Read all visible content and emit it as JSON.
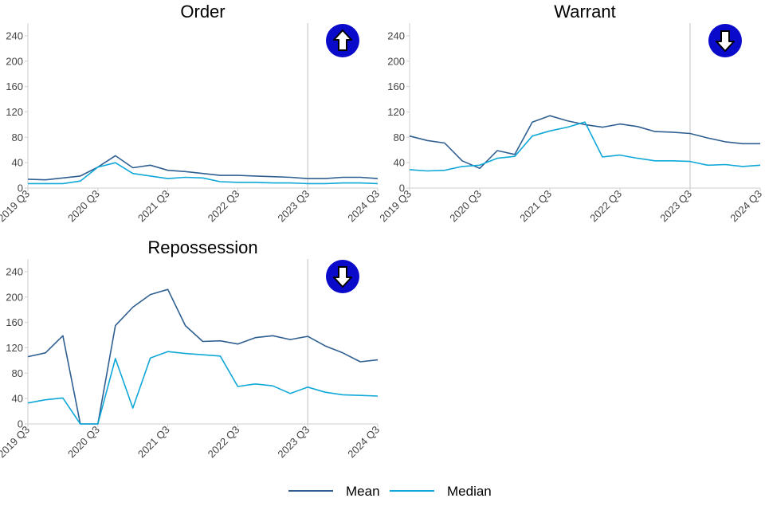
{
  "chart_data": [
    {
      "type": "line",
      "title": "Order",
      "trend_icon": "arrow-up-icon",
      "categories": [
        "2019 Q3",
        "2019 Q4",
        "2020 Q1",
        "2020 Q2",
        "2020 Q3",
        "2020 Q4",
        "2021 Q1",
        "2021 Q2",
        "2021 Q3",
        "2021 Q4",
        "2022 Q1",
        "2022 Q2",
        "2022 Q3",
        "2022 Q4",
        "2023 Q1",
        "2023 Q2",
        "2023 Q3",
        "2023 Q4",
        "2024 Q1",
        "2024 Q2",
        "2024 Q3"
      ],
      "x_tick_labels": [
        "2019 Q3",
        "2020 Q3",
        "2021 Q3",
        "2022 Q3",
        "2023 Q3",
        "2024 Q3"
      ],
      "reference_line_at": "2023 Q3",
      "ylim": [
        0,
        260
      ],
      "yticks": [
        0,
        40,
        80,
        120,
        160,
        200,
        240
      ],
      "series": [
        {
          "name": "Mean",
          "values": [
            14,
            13,
            16,
            19,
            33,
            51,
            32,
            36,
            28,
            26,
            23,
            20,
            20,
            19,
            18,
            17,
            15,
            15,
            17,
            17,
            15
          ]
        },
        {
          "name": "Median",
          "values": [
            7,
            7,
            7,
            11,
            33,
            40,
            23,
            19,
            15,
            17,
            16,
            10,
            9,
            9,
            8,
            8,
            7,
            7,
            8,
            8,
            7
          ]
        }
      ]
    },
    {
      "type": "line",
      "title": "Warrant",
      "trend_icon": "arrow-down-icon",
      "categories": [
        "2019 Q3",
        "2019 Q4",
        "2020 Q1",
        "2020 Q2",
        "2020 Q3",
        "2020 Q4",
        "2021 Q1",
        "2021 Q2",
        "2021 Q3",
        "2021 Q4",
        "2022 Q1",
        "2022 Q2",
        "2022 Q3",
        "2022 Q4",
        "2023 Q1",
        "2023 Q2",
        "2023 Q3",
        "2023 Q4",
        "2024 Q1",
        "2024 Q2",
        "2024 Q3"
      ],
      "x_tick_labels": [
        "2019 Q3",
        "2020 Q3",
        "2021 Q3",
        "2022 Q3",
        "2023 Q3",
        "2024 Q3"
      ],
      "reference_line_at": "2023 Q3",
      "ylim": [
        0,
        260
      ],
      "yticks": [
        0,
        40,
        80,
        120,
        160,
        200,
        240
      ],
      "series": [
        {
          "name": "Mean",
          "values": [
            82,
            75,
            71,
            43,
            31,
            59,
            53,
            104,
            114,
            106,
            100,
            96,
            101,
            97,
            89,
            88,
            86,
            79,
            73,
            70,
            70
          ]
        },
        {
          "name": "Median",
          "values": [
            29,
            27,
            28,
            34,
            36,
            47,
            50,
            82,
            90,
            96,
            104,
            49,
            52,
            47,
            43,
            43,
            42,
            36,
            37,
            34,
            36
          ]
        }
      ]
    },
    {
      "type": "line",
      "title": "Repossession",
      "trend_icon": "arrow-down-icon",
      "categories": [
        "2019 Q3",
        "2019 Q4",
        "2020 Q1",
        "2020 Q2",
        "2020 Q3",
        "2020 Q4",
        "2021 Q1",
        "2021 Q2",
        "2021 Q3",
        "2021 Q4",
        "2022 Q1",
        "2022 Q2",
        "2022 Q3",
        "2022 Q4",
        "2023 Q1",
        "2023 Q2",
        "2023 Q3",
        "2023 Q4",
        "2024 Q1",
        "2024 Q2",
        "2024 Q3"
      ],
      "x_tick_labels": [
        "2019 Q3",
        "2020 Q3",
        "2021 Q3",
        "2022 Q3",
        "2023 Q3",
        "2024 Q3"
      ],
      "reference_line_at": "2023 Q3",
      "ylim": [
        0,
        260
      ],
      "yticks": [
        0,
        40,
        80,
        120,
        160,
        200,
        240
      ],
      "series": [
        {
          "name": "Mean",
          "values": [
            106,
            112,
            139,
            0,
            0,
            155,
            184,
            204,
            212,
            155,
            130,
            131,
            126,
            136,
            139,
            133,
            138,
            123,
            112,
            98,
            101
          ]
        },
        {
          "name": "Median",
          "values": [
            33,
            38,
            41,
            0,
            0,
            103,
            25,
            104,
            114,
            111,
            109,
            107,
            59,
            63,
            60,
            48,
            58,
            50,
            46,
            45,
            44
          ]
        }
      ]
    }
  ],
  "legend": {
    "position": "bottom-center",
    "items": [
      {
        "label": "Mean",
        "color": "#2f5f91"
      },
      {
        "label": "Median",
        "color": "#0fa8d9"
      }
    ]
  },
  "colors": {
    "mean": "#2f5f91",
    "median": "#0fa8d9",
    "icon_circle": "#0a0acb",
    "reference_line": "#c0c0c0",
    "axis": "#cfcfcf"
  }
}
